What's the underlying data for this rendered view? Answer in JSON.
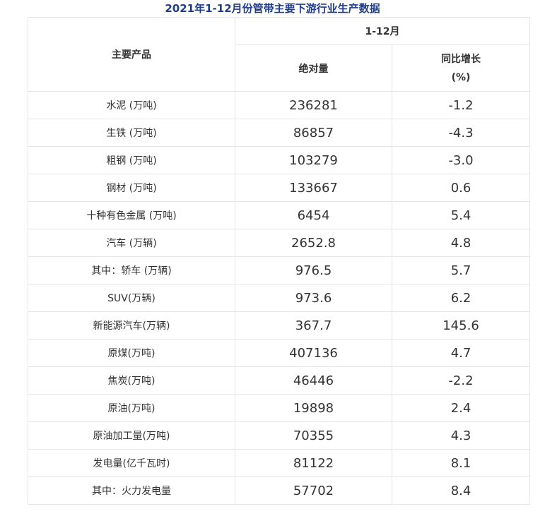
{
  "title": "2021年1-12月份管带主要下游行业生产数据",
  "header": {
    "col_product": "主要产品",
    "period": "1-12月",
    "col_absolute": "绝对量",
    "col_yoy_line1": "同比增长",
    "col_yoy_line2": "(%)"
  },
  "rows": [
    {
      "name": "水泥 (万吨)",
      "value": "236281",
      "yoy": "-1.2"
    },
    {
      "name": "生铁 (万吨)",
      "value": "86857",
      "yoy": "-4.3"
    },
    {
      "name": "粗钢 (万吨)",
      "value": "103279",
      "yoy": "-3.0"
    },
    {
      "name": "钢材 (万吨)",
      "value": "133667",
      "yoy": "0.6"
    },
    {
      "name": "十种有色金属 (万吨)",
      "value": "6454",
      "yoy": "5.4"
    },
    {
      "name": "汽车 (万辆)",
      "value": "2652.8",
      "yoy": "4.8"
    },
    {
      "name": "其中：轿车 (万辆)",
      "value": "976.5",
      "yoy": "5.7"
    },
    {
      "name": "SUV(万辆)",
      "value": "973.6",
      "yoy": "6.2"
    },
    {
      "name": "新能源汽车(万辆)",
      "value": "367.7",
      "yoy": "145.6"
    },
    {
      "name": "原煤(万吨)",
      "value": "407136",
      "yoy": "4.7"
    },
    {
      "name": "焦炭(万吨)",
      "value": "46446",
      "yoy": "-2.2"
    },
    {
      "name": "原油(万吨)",
      "value": "19898",
      "yoy": "2.4"
    },
    {
      "name": "原油加工量(万吨)",
      "value": "70355",
      "yoy": "4.3"
    },
    {
      "name": "发电量(亿千瓦时)",
      "value": "81122",
      "yoy": "8.1"
    },
    {
      "name": "其中：火力发电量",
      "value": "57702",
      "yoy": "8.4"
    }
  ]
}
